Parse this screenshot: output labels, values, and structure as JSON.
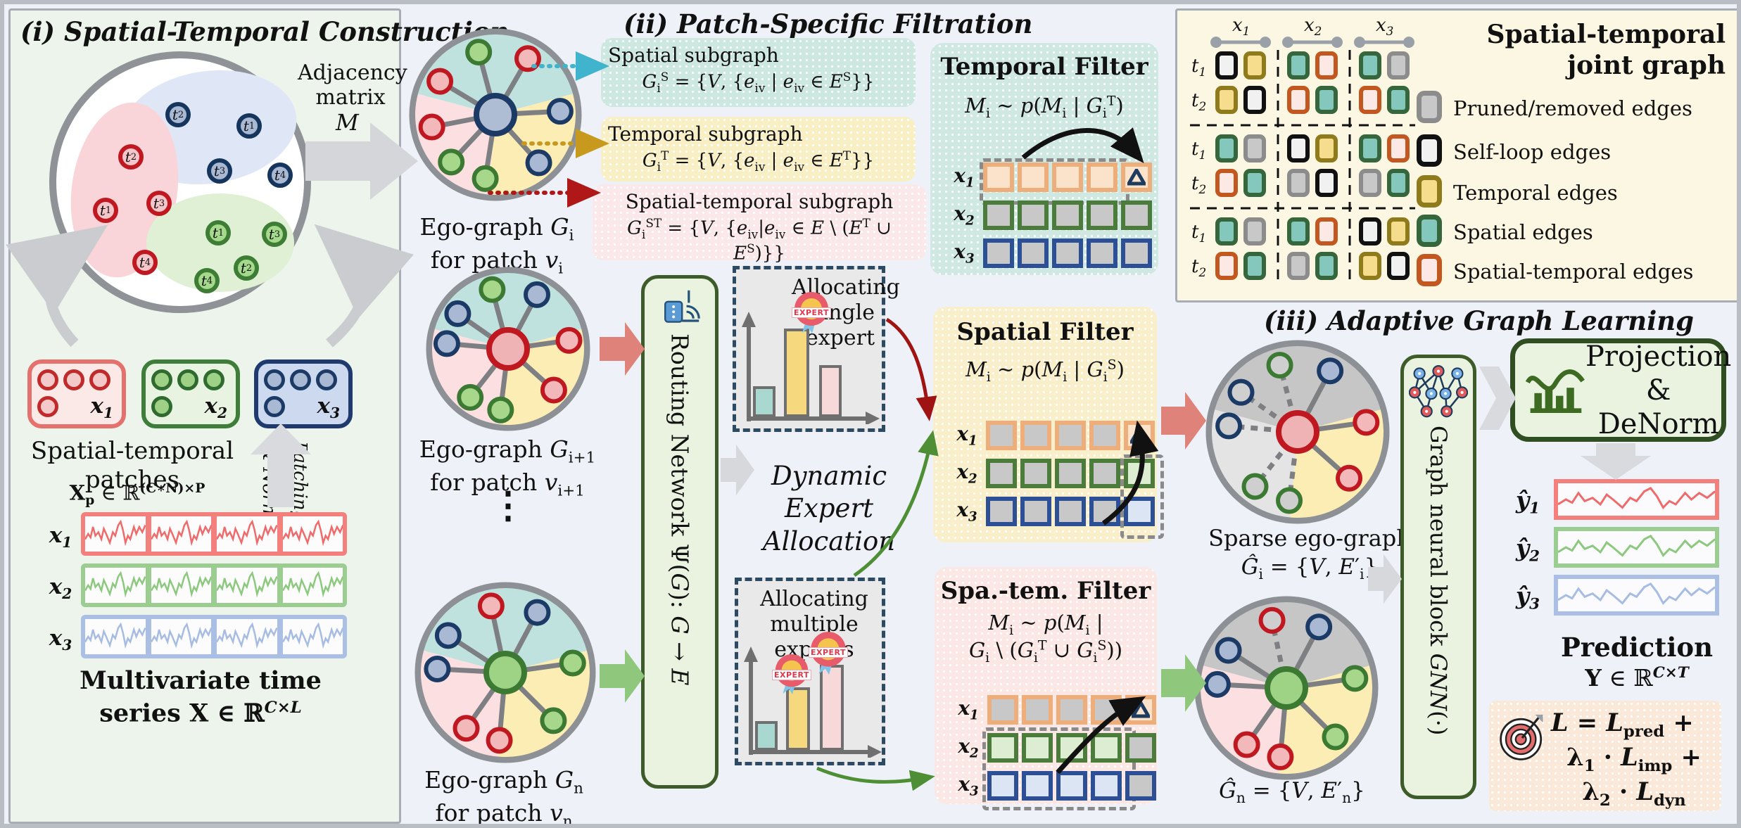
{
  "construction": {
    "title": "(i) Spatial-Temporal Construction",
    "adjacency_label": "Adjacency matrix",
    "adjacency_symbol": "M",
    "clusters": {
      "blue": [
        "<i>t</i><sub>2</sub>",
        "<i>t</i><sub>1</sub>",
        "<i>t</i><sub>3</sub>",
        "<i>t</i><sub>4</sub>"
      ],
      "red": [
        "<i>t</i><sub>2</sub>",
        "<i>t</i><sub>1</sub>",
        "<i>t</i><sub>3</sub>",
        "<i>t</i><sub>4</sub>"
      ],
      "green": [
        "<i>t</i><sub>1</sub>",
        "<i>t</i><sub>3</sub>",
        "<i>t</i><sub>2</sub>",
        "<i>t</i><sub>4</sub>"
      ]
    },
    "patch_labels": [
      "<i>x</i><sub>1</sub>",
      "<i>x</i><sub>2</sub>",
      "<i>x</i><sub>3</sub>"
    ],
    "patches_caption": "Spatial-temporal patches",
    "patches_formula": "<b>X</b><sub><b>p</b></sub> ∈ ℝ<sup><b>(C∗N)×P</b></sup>",
    "patching_label_1": "Patching",
    "patching_label_2": "& Norm",
    "series_labels": [
      "<i>x</i><sub>1</sub>",
      "<i>x</i><sub>2</sub>",
      "<i>x</i><sub>3</sub>"
    ],
    "series_caption_1": "Multivariate time",
    "series_caption_2": "series <b>X</b> ∈ ℝ<sup><b><i>C×L</i></b></sup>"
  },
  "filtration": {
    "title": "(ii) Patch-Specific Filtration",
    "ego_captions": [
      {
        "l1": "Ego-graph <i>G</i><sub>i</sub>",
        "l2": "for patch <i>v</i><sub>i</sub>"
      },
      {
        "l1": "Ego-graph <i>G</i><sub>i+1</sub>",
        "l2": "for patch <i>v</i><sub>i+1</sub>"
      },
      {
        "l1": "Ego-graph <i>G</i><sub>n</sub>",
        "l2": "for patch <i>v</i><sub>n</sub>"
      }
    ],
    "ellipsis": "⋮",
    "subgraphs": [
      {
        "name": "Spatial subgraph",
        "formula": "<i>G</i><sub>i</sub><sup>S</sup> = {<i>V</i>,  {<i>e</i><sub>iv</sub> | <i>e</i><sub>iv</sub> ∈ <i>E</i><sup>S</sup>}}"
      },
      {
        "name": "Temporal subgraph",
        "formula": "<i>G</i><sub>i</sub><sup>T</sup> = {<i>V</i>,  {<i>e</i><sub>iv</sub> | <i>e</i><sub>iv</sub> ∈ <i>E</i><sup>T</sup>}}"
      },
      {
        "name": "Spatial-temporal subgraph",
        "formula": "<i>G</i><sub>i</sub><sup>ST</sup> = {<i>V</i>, {<i>e</i><sub>iv</sub>|<i>e</i><sub>iv</sub> ∈ <i>E</i> \\ (<i>E</i><sup>T</sup> ∪ <i>E</i><sup>S</sup>)}}"
      }
    ],
    "routing_label": "Routing Network Ψ(<i>G</i>): <i>G</i> → <i>E</i>",
    "allocation": {
      "single": "Allocating single expert",
      "multiple": "Allocating multiple experts",
      "dynamic": "Dynamic Expert Allocation",
      "badge": "EXPERT"
    },
    "row_labels": [
      "<i>x</i><sub>1</sub>",
      "<i>x</i><sub>2</sub>",
      "<i>x</i><sub>3</sub>"
    ],
    "filters": [
      {
        "name": "Temporal Filter",
        "formula": "<i>M</i><sub>i</sub> ~ <i>p</i>(<i>M</i><sub>i</sub> | <i>G</i><sub>i</sub><sup>T</sup>)",
        "formula2": "",
        "rows": [
          {
            "border": "orange",
            "cells": [
              "peach",
              "peach",
              "peach",
              "peach",
              "peach-tri"
            ]
          },
          {
            "border": "green",
            "cells": [
              "gray",
              "gray",
              "gray",
              "gray",
              "gray"
            ]
          },
          {
            "border": "blue",
            "cells": [
              "gray",
              "gray",
              "gray",
              "gray",
              "gray"
            ]
          }
        ]
      },
      {
        "name": "Spatial Filter",
        "formula": "<i>M</i><sub>i</sub> ~ <i>p</i>(<i>M</i><sub>i</sub> | <i>G</i><sub>i</sub><sup>S</sup>)",
        "formula2": "",
        "rows": [
          {
            "border": "orange",
            "cells": [
              "gray",
              "gray",
              "gray",
              "gray",
              "peach-tri"
            ]
          },
          {
            "border": "green",
            "cells": [
              "gray",
              "gray",
              "gray",
              "gray",
              "grn"
            ]
          },
          {
            "border": "blue",
            "cells": [
              "gray",
              "gray",
              "gray",
              "gray",
              "blu"
            ]
          }
        ]
      },
      {
        "name": "Spa.-tem. Filter",
        "formula": "<i>M</i><sub>i</sub> ~ <i>p</i>(<i>M</i><sub>i</sub> |",
        "formula2": "<i>G</i><sub>i</sub> \\ (<i>G</i><sub>i</sub><sup>T</sup> ∪ <i>G</i><sub>i</sub><sup>S</sup>))",
        "rows": [
          {
            "border": "orange",
            "cells": [
              "gray",
              "gray",
              "gray",
              "gray",
              "peach-tri"
            ]
          },
          {
            "border": "green",
            "cells": [
              "grn",
              "grn",
              "grn",
              "grn",
              "gray"
            ]
          },
          {
            "border": "blue",
            "cells": [
              "blu",
              "blu",
              "blu",
              "blu",
              "gray"
            ]
          }
        ]
      }
    ]
  },
  "joint_graph": {
    "title_1": "Spatial-temporal",
    "title_2": "joint graph",
    "col_groups": [
      "<i>x</i><sub>1</sub>",
      "<i>x</i><sub>2</sub>",
      "<i>x</i><sub>3</sub>"
    ],
    "row_labels": [
      "<i>t</i><sub>1</sub>",
      "<i>t</i><sub>2</sub>",
      "<i>t</i><sub>1</sub>",
      "<i>t</i><sub>2</sub>",
      "<i>t</i><sub>1</sub>",
      "<i>t</i><sub>2</sub>"
    ],
    "matrix": [
      [
        "self",
        "temp",
        "spat",
        "st",
        "spat",
        "prun"
      ],
      [
        "temp",
        "self",
        "st",
        "spat",
        "st",
        "spat"
      ],
      [
        "spat",
        "prun",
        "self",
        "temp",
        "spat",
        "st"
      ],
      [
        "st",
        "spat",
        "prun",
        "self",
        "prun",
        "spat"
      ],
      [
        "spat",
        "prun",
        "spat",
        "st",
        "self",
        "temp"
      ],
      [
        "st",
        "spat",
        "prun",
        "spat",
        "temp",
        "self"
      ]
    ],
    "legend": [
      {
        "type": "prun",
        "label": "Pruned/removed edges"
      },
      {
        "type": "self",
        "label": "Self-loop edges"
      },
      {
        "type": "temp",
        "label": "Temporal edges"
      },
      {
        "type": "spat",
        "label": "Spatial edges"
      },
      {
        "type": "st",
        "label": "Spatial-temporal edges"
      }
    ],
    "colors": {
      "pruned": "#c8c8c8",
      "selfloop": "#f1f1f1",
      "temporal": "#f6dd8d",
      "spatial": "#84c7bc",
      "spatialtemporal": "#fce9e6"
    }
  },
  "adaptive": {
    "title": "(iii) Adaptive Graph Learning",
    "sparse_caption": "Sparse ego-graph",
    "sparse_formula_i": "<i>Ĝ</i><sub>i</sub> = {<i>V</i>, <i>E</i>′<sub>i</sub>}",
    "sparse_formula_n": "<i>Ĝ</i><sub>n</sub> = {<i>V</i>, <i>E</i>′<sub>n</sub>}",
    "gnn_label": "Graph neural block <i>GNN</i>(·)",
    "projection_label_1": "Projection",
    "projection_label_2": "& DeNorm",
    "pred_labels": [
      "<i>ŷ</i><sub>1</sub>",
      "<i>ŷ</i><sub>2</sub>",
      "<i>ŷ</i><sub>3</sub>"
    ],
    "prediction_caption": "Prediction",
    "prediction_formula": "<b>Y</b> ∈ ℝ<sup><b><i>C×T</i></b></sup>",
    "loss_lines": [
      "<i>L</i> = <i>L</i><sub><b>pred</b></sub> +",
      "λ<sub>1</sub> · <i>L</i><sub><b>imp</b></sub> +",
      "λ<sub>2</sub> · <i>L</i><sub><b>dyn</b></sub>"
    ]
  }
}
